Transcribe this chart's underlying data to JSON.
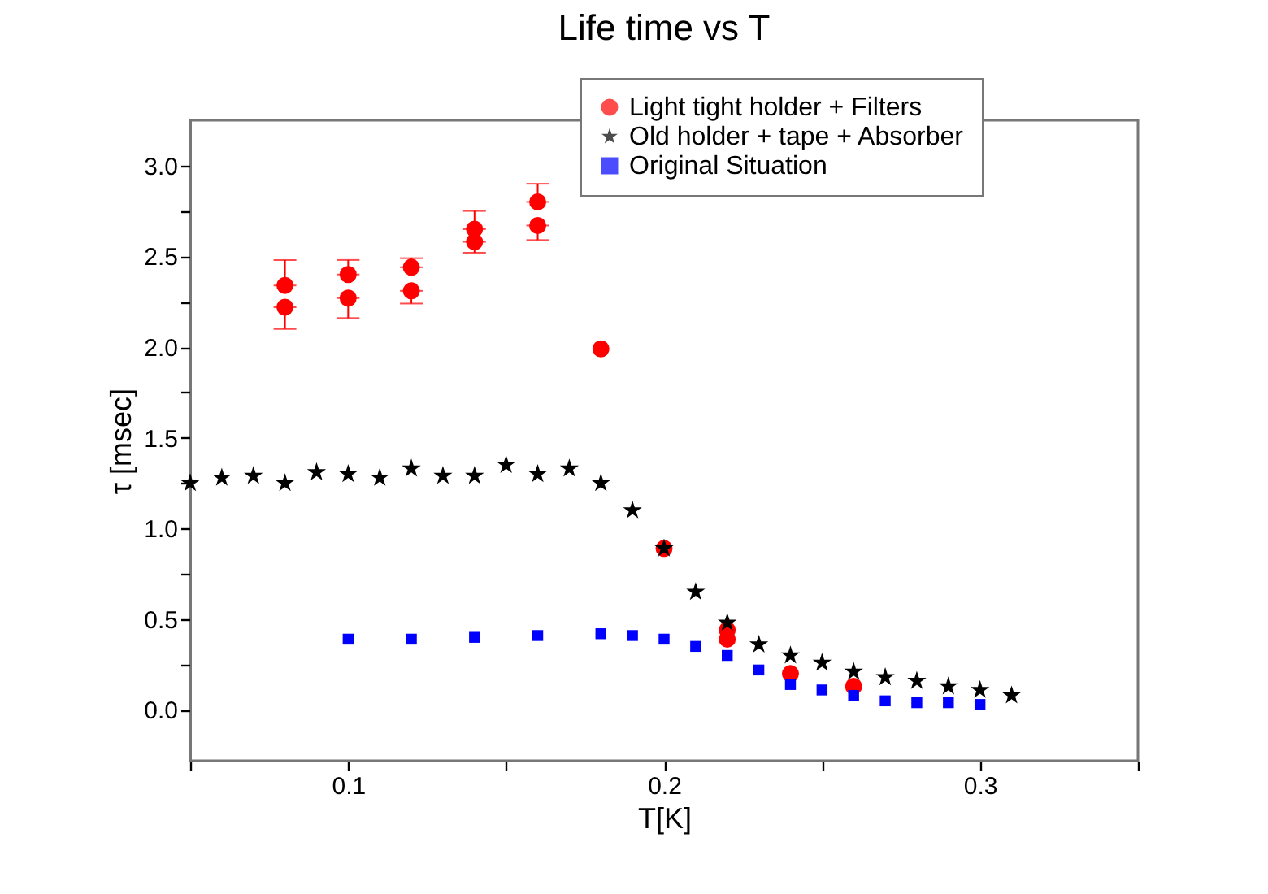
{
  "chart_data": {
    "type": "scatter",
    "title": "Life time vs T",
    "xlabel": "T[K]",
    "ylabel": "τ [msec]",
    "xlim": [
      0.05,
      0.35
    ],
    "ylim": [
      -0.28,
      3.25
    ],
    "xticks": [
      {
        "value": 0.05,
        "label": null
      },
      0.1,
      {
        "value": 0.15,
        "label": null
      },
      0.2,
      {
        "value": 0.25,
        "label": null
      },
      0.3,
      {
        "value": 0.35,
        "label": null
      }
    ],
    "yticks": [
      {
        "value": 0,
        "label": "0.0"
      },
      {
        "value": 0.25,
        "label": null
      },
      0.5,
      {
        "value": 0.75,
        "label": null
      },
      {
        "value": 1,
        "label": "1.0"
      },
      {
        "value": 1.25,
        "label": null
      },
      1.5,
      {
        "value": 1.75,
        "label": null
      },
      {
        "value": 2,
        "label": "2.0"
      },
      {
        "value": 2.25,
        "label": null
      },
      2.5,
      {
        "value": 2.75,
        "label": null
      },
      {
        "value": 3,
        "label": "3.0"
      }
    ],
    "grid": false,
    "legend": "top right",
    "series": [
      {
        "name": "Light tight holder + Filters",
        "color": "#ff0000",
        "marker": "circle",
        "x": [
          0.08,
          0.08,
          0.1,
          0.1,
          0.12,
          0.12,
          0.14,
          0.14,
          0.16,
          0.16,
          0.18,
          0.2,
          0.22,
          0.22,
          0.24,
          0.26
        ],
        "values": [
          2.34,
          2.22,
          2.4,
          2.27,
          2.44,
          2.31,
          2.65,
          2.58,
          2.8,
          2.67,
          1.99,
          0.89,
          0.44,
          0.39,
          0.2,
          0.13
        ],
        "errors": [
          [
            2.34,
            2.48
          ],
          [
            2.1,
            2.22
          ],
          [
            2.4,
            2.48
          ],
          [
            2.16,
            2.27
          ],
          [
            2.44,
            2.49
          ],
          [
            2.24,
            2.31
          ],
          [
            2.65,
            2.75
          ],
          [
            2.52,
            2.58
          ],
          [
            2.8,
            2.9
          ],
          [
            2.59,
            2.67
          ],
          null,
          null,
          null,
          null,
          null,
          null
        ]
      },
      {
        "name": "Old holder + tape + Absorber",
        "color": "#000000",
        "marker": "star",
        "x": [
          0.05,
          0.06,
          0.07,
          0.08,
          0.09,
          0.1,
          0.11,
          0.12,
          0.13,
          0.14,
          0.15,
          0.16,
          0.17,
          0.18,
          0.19,
          0.2,
          0.21,
          0.22,
          0.23,
          0.24,
          0.25,
          0.26,
          0.27,
          0.28,
          0.29,
          0.3,
          0.31
        ],
        "values": [
          1.25,
          1.28,
          1.29,
          1.25,
          1.31,
          1.3,
          1.28,
          1.33,
          1.29,
          1.29,
          1.35,
          1.3,
          1.33,
          1.25,
          1.1,
          0.89,
          0.65,
          0.48,
          0.36,
          0.3,
          0.26,
          0.21,
          0.18,
          0.16,
          0.13,
          0.11,
          0.08
        ]
      },
      {
        "name": "Original Situation",
        "color": "#0000ff",
        "marker": "square",
        "x": [
          0.1,
          0.12,
          0.14,
          0.16,
          0.18,
          0.19,
          0.2,
          0.21,
          0.22,
          0.23,
          0.24,
          0.25,
          0.26,
          0.27,
          0.28,
          0.29,
          0.3
        ],
        "values": [
          0.39,
          0.39,
          0.4,
          0.41,
          0.42,
          0.41,
          0.39,
          0.35,
          0.3,
          0.22,
          0.14,
          0.11,
          0.08,
          0.05,
          0.04,
          0.04,
          0.03
        ]
      }
    ]
  }
}
